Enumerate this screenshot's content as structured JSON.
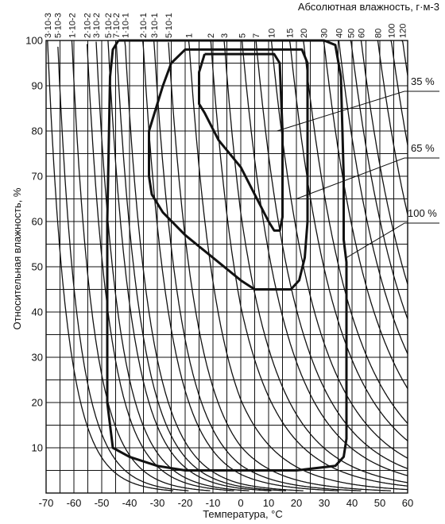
{
  "chart_data": {
    "type": "line",
    "title": "",
    "xlabel": "Температура, °С",
    "ylabel": "Относительная влажность, %",
    "top_axis_label": "Абсолютная влажность, г·м-3",
    "xlim": [
      -70,
      60
    ],
    "ylim": [
      0,
      100
    ],
    "x_ticks": [
      "-70",
      "-60",
      "-50",
      "-40",
      "-30",
      "-20",
      "-10",
      "0",
      "10",
      "20",
      "30",
      "40",
      "50",
      "60"
    ],
    "y_ticks": [
      "10",
      "20",
      "30",
      "40",
      "50",
      "60",
      "70",
      "80",
      "90",
      "100"
    ],
    "grid": true,
    "absolute_humidity_lines": [
      {
        "label": "3·10-3",
        "value": 0.003
      },
      {
        "label": "5·10-3",
        "value": 0.005
      },
      {
        "label": "1·10-2",
        "value": 0.01
      },
      {
        "label": "2·10-2",
        "value": 0.02
      },
      {
        "label": "3·10-2",
        "value": 0.03
      },
      {
        "label": "5·10-2",
        "value": 0.05
      },
      {
        "label": "7·10-2",
        "value": 0.07
      },
      {
        "label": "1·10-1",
        "value": 0.1
      },
      {
        "label": "2·10-1",
        "value": 0.2
      },
      {
        "label": "3·10-1",
        "value": 0.3
      },
      {
        "label": "5·10-1",
        "value": 0.5
      },
      {
        "label": "1",
        "value": 1
      },
      {
        "label": "2",
        "value": 2
      },
      {
        "label": "3",
        "value": 3
      },
      {
        "label": "5",
        "value": 5
      },
      {
        "label": "7",
        "value": 7
      },
      {
        "label": "10",
        "value": 10
      },
      {
        "label": "15",
        "value": 15
      },
      {
        "label": "20",
        "value": 20
      },
      {
        "label": "30",
        "value": 30
      },
      {
        "label": "40",
        "value": 40
      },
      {
        "label": "50",
        "value": 50
      },
      {
        "label": "60",
        "value": 60
      },
      {
        "label": "80",
        "value": 80
      },
      {
        "label": "100",
        "value": 100
      },
      {
        "label": "120",
        "value": 120
      }
    ],
    "regions": [
      {
        "name": "100 %",
        "points": [
          [
            -44,
            100
          ],
          [
            -46,
            98
          ],
          [
            -47,
            92
          ],
          [
            -48,
            60
          ],
          [
            -48,
            20
          ],
          [
            -46,
            10
          ],
          [
            -40,
            8
          ],
          [
            -30,
            6
          ],
          [
            -20,
            5
          ],
          [
            20,
            5
          ],
          [
            34,
            6
          ],
          [
            37,
            8
          ],
          [
            38,
            12
          ],
          [
            38,
            51
          ],
          [
            37,
            56
          ],
          [
            37,
            70
          ],
          [
            36,
            92
          ],
          [
            34,
            99
          ],
          [
            30,
            100
          ],
          [
            -38,
            100
          ],
          [
            -44,
            100
          ]
        ]
      },
      {
        "name": "65 %",
        "points": [
          [
            -25,
            95
          ],
          [
            -28,
            90
          ],
          [
            -31,
            84
          ],
          [
            -33,
            80
          ],
          [
            -33,
            70
          ],
          [
            -32,
            66
          ],
          [
            -28,
            62
          ],
          [
            -20,
            57
          ],
          [
            -10,
            52
          ],
          [
            0,
            47
          ],
          [
            5,
            45
          ],
          [
            18,
            45
          ],
          [
            21,
            47
          ],
          [
            23,
            52
          ],
          [
            24,
            60
          ],
          [
            24,
            80
          ],
          [
            24,
            95
          ],
          [
            22,
            98
          ],
          [
            18,
            98
          ],
          [
            -20,
            98
          ],
          [
            -25,
            95
          ]
        ]
      },
      {
        "name": "35 %",
        "points": [
          [
            -13,
            97
          ],
          [
            -15,
            93
          ],
          [
            -15,
            86
          ],
          [
            -13,
            84
          ],
          [
            -8,
            78
          ],
          [
            0,
            72
          ],
          [
            5,
            66
          ],
          [
            10,
            60
          ],
          [
            12,
            58
          ],
          [
            14,
            58
          ],
          [
            15,
            61
          ],
          [
            15,
            80
          ],
          [
            14,
            95
          ],
          [
            12,
            97
          ],
          [
            -10,
            97
          ],
          [
            -13,
            97
          ]
        ]
      }
    ],
    "annotations": [
      {
        "text": "35 %",
        "target_region": "35 %"
      },
      {
        "text": "65 %",
        "target_region": "65 %"
      },
      {
        "text": "100 %",
        "target_region": "100 %"
      }
    ]
  }
}
